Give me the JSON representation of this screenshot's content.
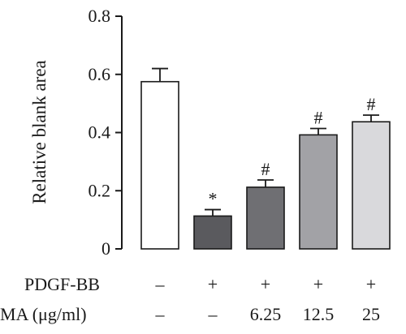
{
  "chart_data": {
    "type": "bar",
    "ylabel": "Relative blank area",
    "ylim": [
      0,
      0.8
    ],
    "y_ticks": [
      0,
      0.2,
      0.4,
      0.6,
      0.8
    ],
    "y_tick_labels": [
      "0",
      "0.2",
      "0.4",
      "0.6",
      "0.8"
    ],
    "values": [
      0.575,
      0.113,
      0.212,
      0.392,
      0.437
    ],
    "errors": [
      0.045,
      0.022,
      0.025,
      0.022,
      0.023
    ],
    "bar_colors": [
      "#ffffff",
      "#5a5a5e",
      "#6f6f73",
      "#a2a2a6",
      "#d9d9dc"
    ],
    "markers": [
      "",
      "*",
      "#",
      "#",
      "#"
    ],
    "conditions": [
      {
        "label": "PDGF-BB",
        "values": [
          "–",
          "+",
          "+",
          "+",
          "+"
        ]
      },
      {
        "label": "MA (μg/ml)",
        "values": [
          "–",
          "–",
          "6.25",
          "12.5",
          "25"
        ]
      }
    ]
  }
}
